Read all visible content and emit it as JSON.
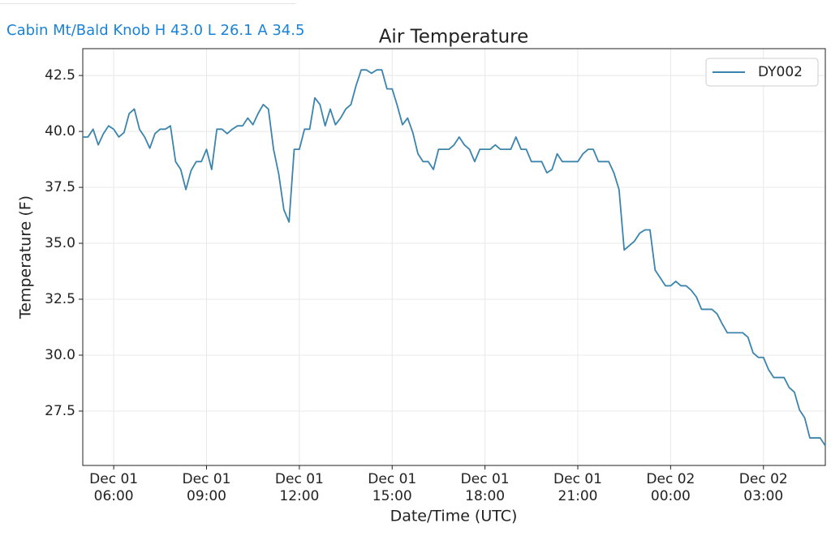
{
  "header": {
    "title": "Cabin Mt/Bald Knob H 43.0 L 26.1 A 34.5"
  },
  "chart_data": {
    "type": "line",
    "title": "Air Temperature",
    "x_label": "Date/Time (UTC)",
    "y_label": "Temperature (F)",
    "x": [
      "Dec 01 05:00",
      "Dec 01 05:10",
      "Dec 01 05:20",
      "Dec 01 05:30",
      "Dec 01 05:40",
      "Dec 01 05:50",
      "Dec 01 06:00",
      "Dec 01 06:10",
      "Dec 01 06:20",
      "Dec 01 06:30",
      "Dec 01 06:40",
      "Dec 01 06:50",
      "Dec 01 07:00",
      "Dec 01 07:10",
      "Dec 01 07:20",
      "Dec 01 07:30",
      "Dec 01 07:40",
      "Dec 01 07:50",
      "Dec 01 08:00",
      "Dec 01 08:10",
      "Dec 01 08:20",
      "Dec 01 08:30",
      "Dec 01 08:40",
      "Dec 01 08:50",
      "Dec 01 09:00",
      "Dec 01 09:10",
      "Dec 01 09:20",
      "Dec 01 09:30",
      "Dec 01 09:40",
      "Dec 01 09:50",
      "Dec 01 10:00",
      "Dec 01 10:10",
      "Dec 01 10:20",
      "Dec 01 10:30",
      "Dec 01 10:40",
      "Dec 01 10:50",
      "Dec 01 11:00",
      "Dec 01 11:10",
      "Dec 01 11:20",
      "Dec 01 11:30",
      "Dec 01 11:40",
      "Dec 01 11:50",
      "Dec 01 12:00",
      "Dec 01 12:10",
      "Dec 01 12:20",
      "Dec 01 12:30",
      "Dec 01 12:40",
      "Dec 01 12:50",
      "Dec 01 13:00",
      "Dec 01 13:10",
      "Dec 01 13:20",
      "Dec 01 13:30",
      "Dec 01 13:40",
      "Dec 01 13:50",
      "Dec 01 14:00",
      "Dec 01 14:10",
      "Dec 01 14:20",
      "Dec 01 14:30",
      "Dec 01 14:40",
      "Dec 01 14:50",
      "Dec 01 15:00",
      "Dec 01 15:10",
      "Dec 01 15:20",
      "Dec 01 15:30",
      "Dec 01 15:40",
      "Dec 01 15:50",
      "Dec 01 16:00",
      "Dec 01 16:10",
      "Dec 01 16:20",
      "Dec 01 16:30",
      "Dec 01 16:40",
      "Dec 01 16:50",
      "Dec 01 17:00",
      "Dec 01 17:10",
      "Dec 01 17:20",
      "Dec 01 17:30",
      "Dec 01 17:40",
      "Dec 01 17:50",
      "Dec 01 18:00",
      "Dec 01 18:10",
      "Dec 01 18:20",
      "Dec 01 18:30",
      "Dec 01 18:40",
      "Dec 01 18:50",
      "Dec 01 19:00",
      "Dec 01 19:10",
      "Dec 01 19:20",
      "Dec 01 19:30",
      "Dec 01 19:40",
      "Dec 01 19:50",
      "Dec 01 20:00",
      "Dec 01 20:10",
      "Dec 01 20:20",
      "Dec 01 20:30",
      "Dec 01 20:40",
      "Dec 01 20:50",
      "Dec 01 21:00",
      "Dec 01 21:10",
      "Dec 01 21:20",
      "Dec 01 21:30",
      "Dec 01 21:40",
      "Dec 01 21:50",
      "Dec 01 22:00",
      "Dec 01 22:10",
      "Dec 01 22:20",
      "Dec 01 22:30",
      "Dec 01 22:40",
      "Dec 01 22:50",
      "Dec 01 23:00",
      "Dec 01 23:10",
      "Dec 01 23:20",
      "Dec 01 23:30",
      "Dec 01 23:40",
      "Dec 01 23:50",
      "Dec 02 00:00",
      "Dec 02 00:10",
      "Dec 02 00:20",
      "Dec 02 00:30",
      "Dec 02 00:40",
      "Dec 02 00:50",
      "Dec 02 01:00",
      "Dec 02 01:10",
      "Dec 02 01:20",
      "Dec 02 01:30",
      "Dec 02 01:40",
      "Dec 02 01:50",
      "Dec 02 02:00",
      "Dec 02 02:10",
      "Dec 02 02:20",
      "Dec 02 02:30",
      "Dec 02 02:40",
      "Dec 02 02:50",
      "Dec 02 03:00",
      "Dec 02 03:10",
      "Dec 02 03:20",
      "Dec 02 03:30",
      "Dec 02 03:40",
      "Dec 02 03:50",
      "Dec 02 04:00",
      "Dec 02 04:10",
      "Dec 02 04:20",
      "Dec 02 04:30",
      "Dec 02 04:40",
      "Dec 02 04:50",
      "Dec 02 05:00"
    ],
    "series": [
      {
        "name": "DY002",
        "color": "#3b84ad",
        "values": [
          39.75,
          39.75,
          40.1,
          39.4,
          39.9,
          40.25,
          40.1,
          39.75,
          39.95,
          40.8,
          41.0,
          40.1,
          39.75,
          39.25,
          39.9,
          40.1,
          40.1,
          40.25,
          38.65,
          38.3,
          37.4,
          38.25,
          38.65,
          38.65,
          39.2,
          38.3,
          40.1,
          40.1,
          39.9,
          40.1,
          40.25,
          40.25,
          40.6,
          40.3,
          40.8,
          41.2,
          41.0,
          39.2,
          38.1,
          36.5,
          35.95,
          39.2,
          39.2,
          40.1,
          40.1,
          41.5,
          41.2,
          40.25,
          41.0,
          40.3,
          40.6,
          41.0,
          41.2,
          42.05,
          42.75,
          42.75,
          42.6,
          42.75,
          42.75,
          41.9,
          41.9,
          41.15,
          40.3,
          40.6,
          39.95,
          39.0,
          38.65,
          38.65,
          38.3,
          39.2,
          39.2,
          39.2,
          39.4,
          39.75,
          39.4,
          39.2,
          38.65,
          39.2,
          39.2,
          39.2,
          39.4,
          39.2,
          39.2,
          39.2,
          39.75,
          39.2,
          39.2,
          38.65,
          38.65,
          38.65,
          38.15,
          38.3,
          39.0,
          38.65,
          38.65,
          38.65,
          38.65,
          39.0,
          39.2,
          39.2,
          38.65,
          38.65,
          38.65,
          38.15,
          37.4,
          34.7,
          34.9,
          35.1,
          35.45,
          35.6,
          35.6,
          33.8,
          33.45,
          33.1,
          33.1,
          33.3,
          33.1,
          33.1,
          32.9,
          32.6,
          32.05,
          32.05,
          32.05,
          31.85,
          31.4,
          31.0,
          31.0,
          31.0,
          31.0,
          30.8,
          30.1,
          29.9,
          29.9,
          29.35,
          29.0,
          29.0,
          29.0,
          28.55,
          28.35,
          27.55,
          27.2,
          26.3,
          26.3,
          26.3,
          25.95
        ]
      }
    ],
    "xlim": [
      "Dec 01 05:00",
      "Dec 02 05:00"
    ],
    "xticks": [
      "Dec 01 06:00",
      "Dec 01 09:00",
      "Dec 01 12:00",
      "Dec 01 15:00",
      "Dec 01 18:00",
      "Dec 01 21:00",
      "Dec 02 00:00",
      "Dec 02 03:00"
    ],
    "ylim": [
      25.07,
      43.7
    ],
    "yticks": [
      27.5,
      {
        "value": 30,
        "label": "30.0"
      },
      32.5,
      {
        "value": 35,
        "label": "35.0"
      },
      37.5,
      {
        "value": 40,
        "label": "40.0"
      },
      42.5
    ],
    "grid": true,
    "legend": "upper right"
  }
}
